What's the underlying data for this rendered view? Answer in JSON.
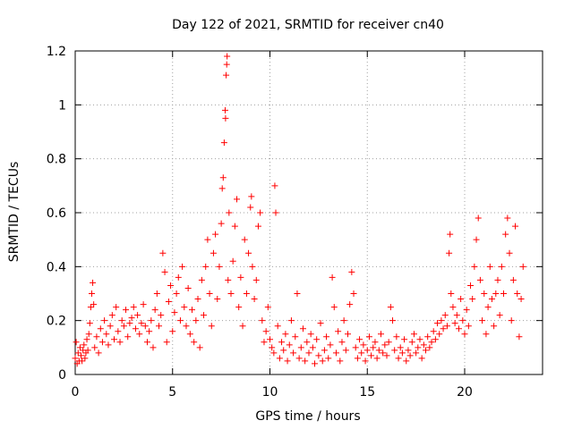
{
  "chart_data": {
    "type": "scatter",
    "title": "Day 122 of 2021, SRMTID for receiver cn40",
    "xlabel": "GPS time / hours",
    "ylabel": "SRMTID / TECUs",
    "xlim": [
      0,
      24
    ],
    "ylim": [
      0,
      1.2
    ],
    "xticks": [
      0,
      5,
      10,
      15,
      20
    ],
    "xtick_labels": [
      "0",
      "5",
      "10",
      "15",
      "20"
    ],
    "yticks": [
      0,
      0.2,
      0.4,
      0.6,
      0.8,
      1.0,
      1.2
    ],
    "ytick_labels": [
      "0",
      "0.2",
      "0.4",
      "0.6",
      "0.8",
      "1",
      "1.2"
    ],
    "grid": true,
    "marker": "+",
    "color": "#ff0000",
    "series": [
      {
        "name": "SRMTID",
        "points": [
          [
            0.0,
            0.06
          ],
          [
            0.05,
            0.12
          ],
          [
            0.1,
            0.04
          ],
          [
            0.15,
            0.08
          ],
          [
            0.2,
            0.05
          ],
          [
            0.25,
            0.1
          ],
          [
            0.3,
            0.07
          ],
          [
            0.35,
            0.05
          ],
          [
            0.4,
            0.09
          ],
          [
            0.45,
            0.11
          ],
          [
            0.5,
            0.06
          ],
          [
            0.55,
            0.08
          ],
          [
            0.6,
            0.13
          ],
          [
            0.65,
            0.09
          ],
          [
            0.7,
            0.15
          ],
          [
            0.75,
            0.19
          ],
          [
            0.8,
            0.25
          ],
          [
            0.85,
            0.3
          ],
          [
            0.9,
            0.34
          ],
          [
            0.95,
            0.26
          ],
          [
            1.0,
            0.1
          ],
          [
            1.1,
            0.14
          ],
          [
            1.2,
            0.08
          ],
          [
            1.3,
            0.17
          ],
          [
            1.4,
            0.12
          ],
          [
            1.5,
            0.2
          ],
          [
            1.6,
            0.15
          ],
          [
            1.7,
            0.11
          ],
          [
            1.8,
            0.18
          ],
          [
            1.9,
            0.22
          ],
          [
            2.0,
            0.13
          ],
          [
            2.1,
            0.25
          ],
          [
            2.2,
            0.16
          ],
          [
            2.3,
            0.12
          ],
          [
            2.4,
            0.2
          ],
          [
            2.5,
            0.18
          ],
          [
            2.6,
            0.24
          ],
          [
            2.7,
            0.14
          ],
          [
            2.8,
            0.19
          ],
          [
            2.9,
            0.21
          ],
          [
            3.0,
            0.25
          ],
          [
            3.1,
            0.17
          ],
          [
            3.2,
            0.22
          ],
          [
            3.3,
            0.15
          ],
          [
            3.4,
            0.19
          ],
          [
            3.5,
            0.26
          ],
          [
            3.6,
            0.18
          ],
          [
            3.7,
            0.12
          ],
          [
            3.8,
            0.16
          ],
          [
            3.9,
            0.2
          ],
          [
            4.0,
            0.1
          ],
          [
            4.1,
            0.24
          ],
          [
            4.2,
            0.3
          ],
          [
            4.3,
            0.18
          ],
          [
            4.4,
            0.22
          ],
          [
            4.5,
            0.45
          ],
          [
            4.6,
            0.38
          ],
          [
            4.7,
            0.12
          ],
          [
            4.8,
            0.27
          ],
          [
            4.9,
            0.33
          ],
          [
            5.0,
            0.16
          ],
          [
            5.1,
            0.23
          ],
          [
            5.2,
            0.3
          ],
          [
            5.3,
            0.36
          ],
          [
            5.4,
            0.2
          ],
          [
            5.5,
            0.4
          ],
          [
            5.6,
            0.25
          ],
          [
            5.7,
            0.18
          ],
          [
            5.8,
            0.32
          ],
          [
            5.9,
            0.15
          ],
          [
            6.0,
            0.24
          ],
          [
            6.1,
            0.12
          ],
          [
            6.2,
            0.2
          ],
          [
            6.3,
            0.28
          ],
          [
            6.4,
            0.1
          ],
          [
            6.5,
            0.35
          ],
          [
            6.6,
            0.22
          ],
          [
            6.7,
            0.4
          ],
          [
            6.8,
            0.5
          ],
          [
            6.9,
            0.3
          ],
          [
            7.0,
            0.18
          ],
          [
            7.1,
            0.45
          ],
          [
            7.2,
            0.52
          ],
          [
            7.3,
            0.28
          ],
          [
            7.4,
            0.4
          ],
          [
            7.5,
            0.56
          ],
          [
            7.55,
            0.69
          ],
          [
            7.6,
            0.73
          ],
          [
            7.65,
            0.86
          ],
          [
            7.7,
            0.98
          ],
          [
            7.72,
            0.95
          ],
          [
            7.75,
            1.11
          ],
          [
            7.78,
            1.15
          ],
          [
            7.8,
            1.18
          ],
          [
            7.85,
            0.35
          ],
          [
            7.9,
            0.6
          ],
          [
            8.0,
            0.3
          ],
          [
            8.1,
            0.42
          ],
          [
            8.2,
            0.55
          ],
          [
            8.3,
            0.65
          ],
          [
            8.4,
            0.25
          ],
          [
            8.5,
            0.36
          ],
          [
            8.6,
            0.18
          ],
          [
            8.7,
            0.5
          ],
          [
            8.8,
            0.3
          ],
          [
            8.9,
            0.45
          ],
          [
            9.0,
            0.62
          ],
          [
            9.05,
            0.66
          ],
          [
            9.1,
            0.4
          ],
          [
            9.2,
            0.28
          ],
          [
            9.3,
            0.35
          ],
          [
            9.4,
            0.55
          ],
          [
            9.5,
            0.6
          ],
          [
            9.6,
            0.2
          ],
          [
            9.7,
            0.12
          ],
          [
            9.8,
            0.16
          ],
          [
            9.9,
            0.25
          ],
          [
            10.0,
            0.13
          ],
          [
            10.1,
            0.1
          ],
          [
            10.2,
            0.08
          ],
          [
            10.25,
            0.7
          ],
          [
            10.3,
            0.6
          ],
          [
            10.4,
            0.18
          ],
          [
            10.5,
            0.06
          ],
          [
            10.6,
            0.12
          ],
          [
            10.7,
            0.09
          ],
          [
            10.8,
            0.15
          ],
          [
            10.9,
            0.05
          ],
          [
            11.0,
            0.11
          ],
          [
            11.1,
            0.2
          ],
          [
            11.2,
            0.08
          ],
          [
            11.3,
            0.14
          ],
          [
            11.4,
            0.3
          ],
          [
            11.5,
            0.06
          ],
          [
            11.6,
            0.1
          ],
          [
            11.7,
            0.17
          ],
          [
            11.8,
            0.05
          ],
          [
            11.9,
            0.12
          ],
          [
            12.0,
            0.08
          ],
          [
            12.1,
            0.15
          ],
          [
            12.2,
            0.1
          ],
          [
            12.3,
            0.04
          ],
          [
            12.4,
            0.13
          ],
          [
            12.5,
            0.07
          ],
          [
            12.6,
            0.19
          ],
          [
            12.7,
            0.05
          ],
          [
            12.8,
            0.09
          ],
          [
            12.9,
            0.14
          ],
          [
            13.0,
            0.06
          ],
          [
            13.1,
            0.11
          ],
          [
            13.2,
            0.36
          ],
          [
            13.3,
            0.25
          ],
          [
            13.4,
            0.08
          ],
          [
            13.5,
            0.16
          ],
          [
            13.6,
            0.05
          ],
          [
            13.7,
            0.12
          ],
          [
            13.8,
            0.2
          ],
          [
            13.9,
            0.09
          ],
          [
            14.0,
            0.15
          ],
          [
            14.1,
            0.26
          ],
          [
            14.2,
            0.38
          ],
          [
            14.3,
            0.3
          ],
          [
            14.4,
            0.1
          ],
          [
            14.5,
            0.06
          ],
          [
            14.6,
            0.13
          ],
          [
            14.7,
            0.08
          ],
          [
            14.8,
            0.11
          ],
          [
            14.9,
            0.05
          ],
          [
            15.0,
            0.09
          ],
          [
            15.1,
            0.14
          ],
          [
            15.2,
            0.07
          ],
          [
            15.3,
            0.1
          ],
          [
            15.4,
            0.12
          ],
          [
            15.5,
            0.06
          ],
          [
            15.6,
            0.09
          ],
          [
            15.7,
            0.15
          ],
          [
            15.8,
            0.08
          ],
          [
            15.9,
            0.11
          ],
          [
            16.0,
            0.07
          ],
          [
            16.1,
            0.12
          ],
          [
            16.2,
            0.25
          ],
          [
            16.3,
            0.2
          ],
          [
            16.4,
            0.09
          ],
          [
            16.5,
            0.14
          ],
          [
            16.6,
            0.06
          ],
          [
            16.7,
            0.1
          ],
          [
            16.8,
            0.08
          ],
          [
            16.9,
            0.13
          ],
          [
            17.0,
            0.05
          ],
          [
            17.1,
            0.09
          ],
          [
            17.2,
            0.07
          ],
          [
            17.3,
            0.12
          ],
          [
            17.4,
            0.15
          ],
          [
            17.5,
            0.08
          ],
          [
            17.6,
            0.1
          ],
          [
            17.7,
            0.13
          ],
          [
            17.8,
            0.06
          ],
          [
            17.9,
            0.11
          ],
          [
            18.0,
            0.09
          ],
          [
            18.1,
            0.14
          ],
          [
            18.2,
            0.1
          ],
          [
            18.3,
            0.12
          ],
          [
            18.4,
            0.16
          ],
          [
            18.5,
            0.13
          ],
          [
            18.6,
            0.19
          ],
          [
            18.7,
            0.15
          ],
          [
            18.8,
            0.2
          ],
          [
            18.9,
            0.17
          ],
          [
            19.0,
            0.22
          ],
          [
            19.1,
            0.18
          ],
          [
            19.2,
            0.45
          ],
          [
            19.25,
            0.52
          ],
          [
            19.3,
            0.3
          ],
          [
            19.4,
            0.25
          ],
          [
            19.5,
            0.19
          ],
          [
            19.6,
            0.22
          ],
          [
            19.7,
            0.17
          ],
          [
            19.8,
            0.28
          ],
          [
            19.9,
            0.2
          ],
          [
            20.0,
            0.15
          ],
          [
            20.1,
            0.24
          ],
          [
            20.2,
            0.18
          ],
          [
            20.3,
            0.33
          ],
          [
            20.4,
            0.28
          ],
          [
            20.5,
            0.4
          ],
          [
            20.6,
            0.5
          ],
          [
            20.7,
            0.58
          ],
          [
            20.8,
            0.35
          ],
          [
            20.9,
            0.2
          ],
          [
            21.0,
            0.3
          ],
          [
            21.1,
            0.15
          ],
          [
            21.2,
            0.25
          ],
          [
            21.3,
            0.4
          ],
          [
            21.4,
            0.28
          ],
          [
            21.5,
            0.18
          ],
          [
            21.6,
            0.3
          ],
          [
            21.7,
            0.35
          ],
          [
            21.8,
            0.22
          ],
          [
            21.9,
            0.4
          ],
          [
            22.0,
            0.3
          ],
          [
            22.1,
            0.52
          ],
          [
            22.2,
            0.58
          ],
          [
            22.3,
            0.45
          ],
          [
            22.4,
            0.2
          ],
          [
            22.5,
            0.35
          ],
          [
            22.6,
            0.55
          ],
          [
            22.7,
            0.3
          ],
          [
            22.8,
            0.14
          ],
          [
            22.9,
            0.28
          ],
          [
            23.0,
            0.4
          ]
        ]
      }
    ]
  }
}
